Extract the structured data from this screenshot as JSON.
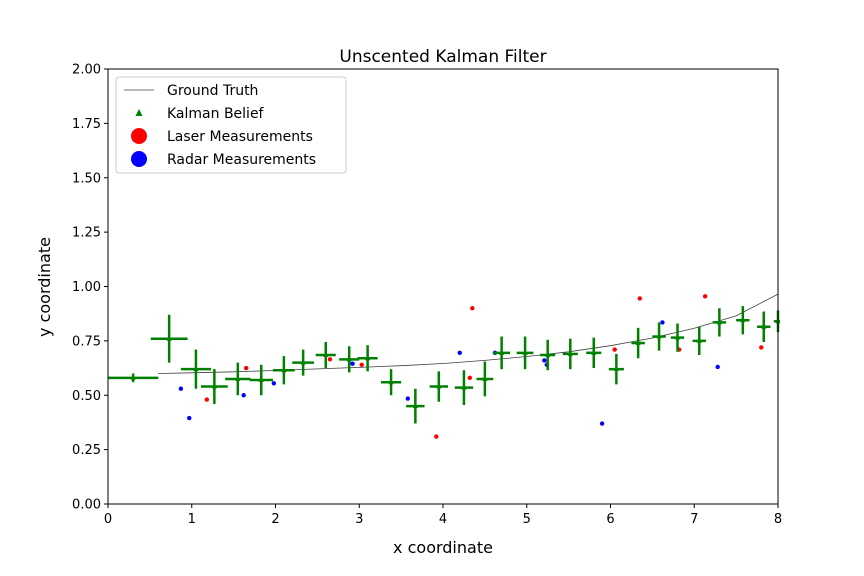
{
  "chart_data": {
    "type": "scatter",
    "title": "Unscented Kalman Filter",
    "xlabel": "x coordinate",
    "ylabel": "y coordinate",
    "xlim": [
      0,
      8
    ],
    "ylim": [
      0,
      2.0
    ],
    "xticks": [
      "0",
      "1",
      "2",
      "3",
      "4",
      "5",
      "6",
      "7",
      "8"
    ],
    "yticks": [
      "0.00",
      "0.25",
      "0.50",
      "0.75",
      "1.00",
      "1.25",
      "1.50",
      "1.75",
      "2.00"
    ],
    "grid": false,
    "legend_position": "top-left",
    "legend": [
      "Ground Truth",
      "Kalman Belief",
      "Laser Measurements",
      "Radar Measurements"
    ],
    "colors": {
      "ground_truth": "#404040",
      "kalman": "#008000",
      "laser": "#ff0000",
      "radar": "#0000ff"
    },
    "ground_truth": {
      "x": [
        0.6,
        1.0,
        1.5,
        2.0,
        2.5,
        3.0,
        3.5,
        4.0,
        4.5,
        5.0,
        5.5,
        6.0,
        6.5,
        7.0,
        7.5,
        8.0
      ],
      "y": [
        0.6,
        0.603,
        0.608,
        0.614,
        0.621,
        0.628,
        0.636,
        0.646,
        0.66,
        0.678,
        0.7,
        0.728,
        0.763,
        0.808,
        0.865,
        0.965
      ]
    },
    "kalman_belief": {
      "x": [
        0.3,
        0.73,
        1.05,
        1.27,
        1.55,
        1.83,
        2.1,
        2.33,
        2.6,
        2.88,
        3.1,
        3.38,
        3.67,
        3.95,
        4.25,
        4.5,
        4.7,
        4.98,
        5.25,
        5.52,
        5.8,
        6.07,
        6.33,
        6.58,
        6.8,
        7.06,
        7.3,
        7.58,
        7.83,
        8.0
      ],
      "y": [
        0.58,
        0.76,
        0.62,
        0.54,
        0.575,
        0.57,
        0.615,
        0.65,
        0.685,
        0.665,
        0.67,
        0.56,
        0.45,
        0.54,
        0.535,
        0.575,
        0.695,
        0.695,
        0.685,
        0.69,
        0.695,
        0.62,
        0.74,
        0.77,
        0.765,
        0.75,
        0.835,
        0.845,
        0.815,
        0.84
      ],
      "xerr": [
        0.3,
        0.22,
        0.18,
        0.16,
        0.15,
        0.14,
        0.13,
        0.13,
        0.12,
        0.12,
        0.12,
        0.12,
        0.11,
        0.11,
        0.11,
        0.1,
        0.1,
        0.1,
        0.09,
        0.09,
        0.09,
        0.09,
        0.08,
        0.08,
        0.08,
        0.08,
        0.08,
        0.08,
        0.08,
        0.05
      ],
      "yerr": [
        0.02,
        0.11,
        0.09,
        0.08,
        0.075,
        0.07,
        0.065,
        0.06,
        0.06,
        0.06,
        0.06,
        0.06,
        0.08,
        0.07,
        0.08,
        0.08,
        0.075,
        0.075,
        0.07,
        0.07,
        0.07,
        0.07,
        0.07,
        0.065,
        0.065,
        0.065,
        0.065,
        0.065,
        0.07,
        0.05
      ]
    },
    "laser_measurements": {
      "x": [
        1.18,
        1.65,
        2.65,
        3.03,
        3.92,
        4.32,
        4.35,
        6.05,
        6.35,
        6.82,
        7.13,
        7.8
      ],
      "y": [
        0.48,
        0.625,
        0.665,
        0.64,
        0.31,
        0.58,
        0.9,
        0.71,
        0.945,
        0.71,
        0.955,
        0.72
      ]
    },
    "radar_measurements": {
      "x": [
        0.87,
        0.97,
        1.62,
        1.98,
        2.92,
        3.58,
        4.2,
        4.62,
        5.21,
        5.24,
        5.9,
        6.62,
        7.28
      ],
      "y": [
        0.53,
        0.395,
        0.5,
        0.555,
        0.645,
        0.485,
        0.695,
        0.695,
        0.66,
        0.64,
        0.37,
        0.835,
        0.63
      ]
    }
  }
}
